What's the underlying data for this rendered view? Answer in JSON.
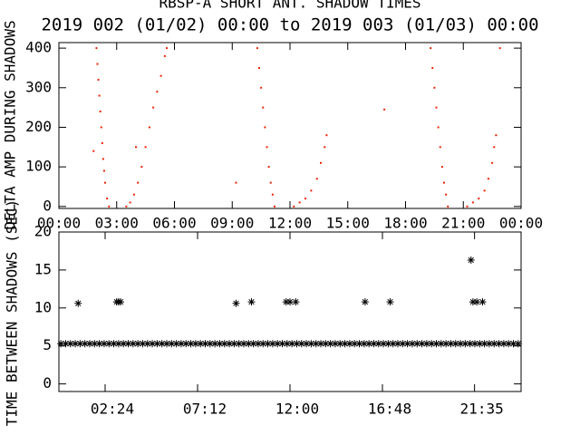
{
  "chart_data": [
    {
      "type": "scatter",
      "title": "RBSP-A SHORT ANT. SHADOW TIMES",
      "subtitle": "2019 002 (01/02) 00:00 to 2019 003 (01/03) 00:00",
      "ylabel": "DELTA AMP DURING SHADOWS",
      "xlim": [
        0,
        24
      ],
      "ylim": [
        -5,
        414
      ],
      "xticks": [
        {
          "value": 0,
          "label": "00:00"
        },
        {
          "value": 3,
          "label": "03:00"
        },
        {
          "value": 6,
          "label": "06:00"
        },
        {
          "value": 9,
          "label": "09:00"
        },
        {
          "value": 12,
          "label": "12:00"
        },
        {
          "value": 15,
          "label": "15:00"
        },
        {
          "value": 18,
          "label": "18:00"
        },
        {
          "value": 21,
          "label": "21:00"
        },
        {
          "value": 24,
          "label": "00:00"
        }
      ],
      "yticks": [
        0,
        100,
        200,
        300,
        400
      ],
      "series": [
        {
          "color": "#ee2200",
          "x": [
            1.95,
            2.0,
            2.05,
            2.1,
            2.15,
            2.2,
            2.25,
            2.3,
            2.35,
            2.4,
            2.5,
            2.6,
            3.5,
            3.7,
            3.9,
            4.1,
            4.3,
            4.5,
            4.7,
            4.9,
            5.1,
            5.3,
            5.5,
            5.6,
            10.3,
            10.4,
            10.5,
            10.6,
            10.7,
            10.8,
            10.9,
            11.0,
            11.1,
            11.2,
            12.2,
            12.5,
            12.8,
            13.1,
            13.4,
            13.6,
            13.8,
            13.9,
            19.3,
            19.4,
            19.5,
            19.6,
            19.7,
            19.8,
            19.9,
            20.0,
            20.1,
            20.2,
            21.2,
            21.5,
            21.8,
            22.1,
            22.3,
            22.5,
            22.6,
            22.7,
            4.0,
            9.2,
            16.9,
            22.9,
            1.8
          ],
          "values": [
            400,
            360,
            320,
            280,
            240,
            200,
            160,
            120,
            90,
            60,
            20,
            0,
            0,
            10,
            30,
            60,
            100,
            150,
            200,
            250,
            290,
            330,
            380,
            400,
            400,
            350,
            300,
            250,
            200,
            150,
            100,
            60,
            30,
            0,
            0,
            10,
            20,
            40,
            70,
            110,
            150,
            180,
            400,
            350,
            300,
            250,
            200,
            150,
            100,
            60,
            30,
            0,
            0,
            10,
            20,
            40,
            70,
            110,
            150,
            180,
            150,
            60,
            245,
            400,
            140
          ]
        }
      ]
    },
    {
      "type": "scatter",
      "ylabel": "TIME BETWEEN SHADOWS (SEC)",
      "xlim": [
        0,
        24
      ],
      "ylim": [
        -1,
        20
      ],
      "xticks": [
        {
          "value": 2.4,
          "label": "02:24"
        },
        {
          "value": 7.2,
          "label": "07:12"
        },
        {
          "value": 12,
          "label": "12:00"
        },
        {
          "value": 16.8,
          "label": "16:48"
        },
        {
          "value": 21.583,
          "label": "21:35"
        }
      ],
      "yticks": [
        0,
        5,
        10,
        15,
        20
      ],
      "series": [
        {
          "color": "#000000",
          "x": [
            0.1,
            0.35,
            0.6,
            0.85,
            1.1,
            1.35,
            1.6,
            1.85,
            2.1,
            2.35,
            2.6,
            2.85,
            3.1,
            3.35,
            3.6,
            3.85,
            4.1,
            4.35,
            4.6,
            4.85,
            5.1,
            5.35,
            5.6,
            5.85,
            6.1,
            6.35,
            6.6,
            6.85,
            7.1,
            7.35,
            7.6,
            7.85,
            8.1,
            8.35,
            8.6,
            8.85,
            9.1,
            9.35,
            9.6,
            9.85,
            10.1,
            10.35,
            10.6,
            10.85,
            11.1,
            11.35,
            11.6,
            11.85,
            12.1,
            12.35,
            12.6,
            12.85,
            13.1,
            13.35,
            13.6,
            13.85,
            14.1,
            14.35,
            14.6,
            14.85,
            15.1,
            15.35,
            15.6,
            15.85,
            16.1,
            16.35,
            16.6,
            16.85,
            17.1,
            17.35,
            17.6,
            17.85,
            18.1,
            18.35,
            18.6,
            18.85,
            19.1,
            19.35,
            19.6,
            19.85,
            20.1,
            20.35,
            20.6,
            20.85,
            21.1,
            21.35,
            21.6,
            21.85,
            22.1,
            22.35,
            22.6,
            22.85,
            23.1,
            23.35,
            23.6,
            23.85,
            1.0,
            3.0,
            3.1,
            3.2,
            9.2,
            10.0,
            11.8,
            12.0,
            12.3,
            15.9,
            17.2,
            21.4,
            21.5,
            21.7,
            22.0
          ],
          "values": [
            5.3,
            5.3,
            5.3,
            5.3,
            5.3,
            5.3,
            5.3,
            5.3,
            5.3,
            5.3,
            5.3,
            5.3,
            5.3,
            5.3,
            5.3,
            5.3,
            5.3,
            5.3,
            5.3,
            5.3,
            5.3,
            5.3,
            5.3,
            5.3,
            5.3,
            5.3,
            5.3,
            5.3,
            5.3,
            5.3,
            5.3,
            5.3,
            5.3,
            5.3,
            5.3,
            5.3,
            5.3,
            5.3,
            5.3,
            5.3,
            5.3,
            5.3,
            5.3,
            5.3,
            5.3,
            5.3,
            5.3,
            5.3,
            5.3,
            5.3,
            5.3,
            5.3,
            5.3,
            5.3,
            5.3,
            5.3,
            5.3,
            5.3,
            5.3,
            5.3,
            5.3,
            5.3,
            5.3,
            5.3,
            5.3,
            5.3,
            5.3,
            5.3,
            5.3,
            5.3,
            5.3,
            5.3,
            5.3,
            5.3,
            5.3,
            5.3,
            5.3,
            5.3,
            5.3,
            5.3,
            5.3,
            5.3,
            5.3,
            5.3,
            5.3,
            5.3,
            5.3,
            5.3,
            5.3,
            5.3,
            5.3,
            5.3,
            5.3,
            5.3,
            5.3,
            5.3,
            10.6,
            10.8,
            10.8,
            10.8,
            10.6,
            10.8,
            10.8,
            10.8,
            10.8,
            10.8,
            10.8,
            16.3,
            10.8,
            10.8,
            10.8
          ]
        }
      ]
    }
  ]
}
